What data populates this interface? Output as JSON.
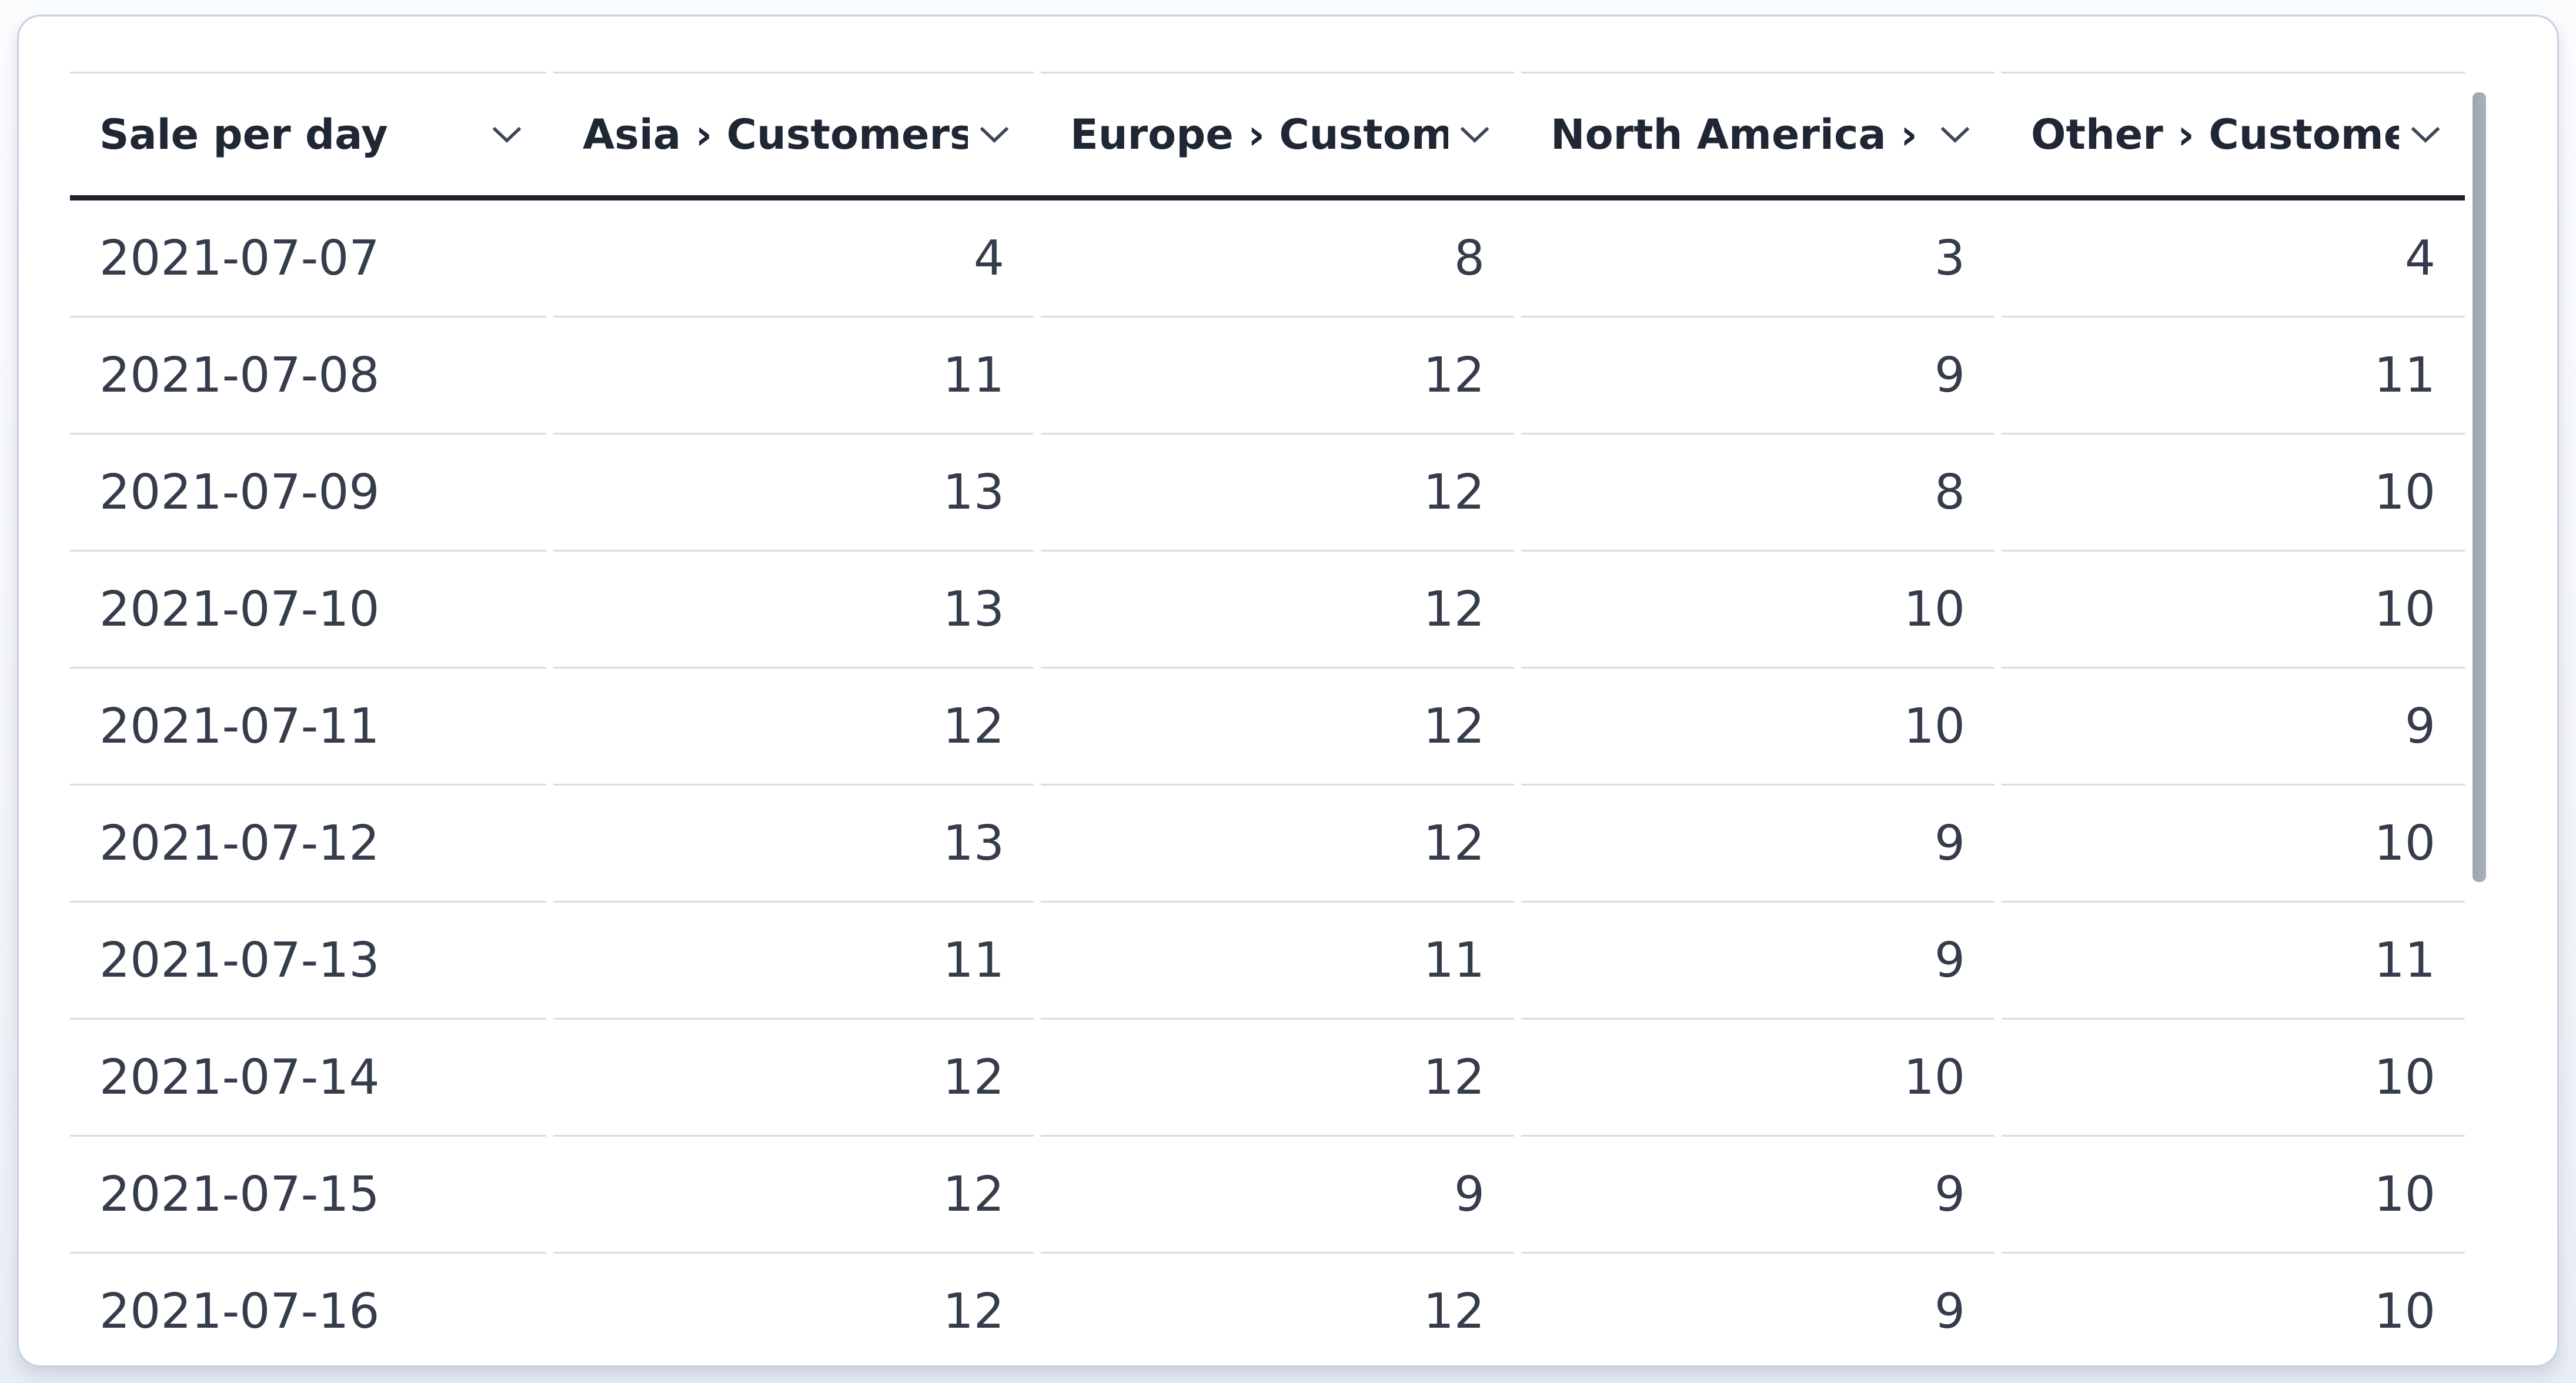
{
  "view": {
    "type": "table-visualization"
  },
  "table": {
    "columns": [
      {
        "label": "Sale per day",
        "align": "left",
        "menu_icon": "chevron-down-icon"
      },
      {
        "label": "Asia › Customers",
        "align": "right",
        "menu_icon": "chevron-down-icon"
      },
      {
        "label": "Europe › Customers",
        "align": "right",
        "menu_icon": "chevron-down-icon"
      },
      {
        "label": "North America › Customers",
        "align": "right",
        "menu_icon": "chevron-down-icon"
      },
      {
        "label": "Other › Customers",
        "align": "right",
        "menu_icon": "chevron-down-icon"
      }
    ],
    "rows": [
      [
        "2021-07-07",
        "4",
        "8",
        "3",
        "4"
      ],
      [
        "2021-07-08",
        "11",
        "12",
        "9",
        "11"
      ],
      [
        "2021-07-09",
        "13",
        "12",
        "8",
        "10"
      ],
      [
        "2021-07-10",
        "13",
        "12",
        "10",
        "10"
      ],
      [
        "2021-07-11",
        "12",
        "12",
        "10",
        "9"
      ],
      [
        "2021-07-12",
        "13",
        "12",
        "9",
        "10"
      ],
      [
        "2021-07-13",
        "11",
        "11",
        "9",
        "11"
      ],
      [
        "2021-07-14",
        "12",
        "12",
        "10",
        "10"
      ],
      [
        "2021-07-15",
        "12",
        "9",
        "9",
        "10"
      ],
      [
        "2021-07-16",
        "12",
        "12",
        "9",
        "10"
      ]
    ]
  },
  "scrollbar": {
    "orientation": "vertical",
    "thumb_visible": true
  },
  "colors": {
    "page_background": "#f3f5f9",
    "card_background": "#ffffff",
    "card_border": "#c8d1e0",
    "header_rule": "#1c212b",
    "row_divider": "#d7dce8",
    "header_text": "#1f2634",
    "cell_text": "#353c4b",
    "scrollbar_thumb": "#a7acb6"
  }
}
